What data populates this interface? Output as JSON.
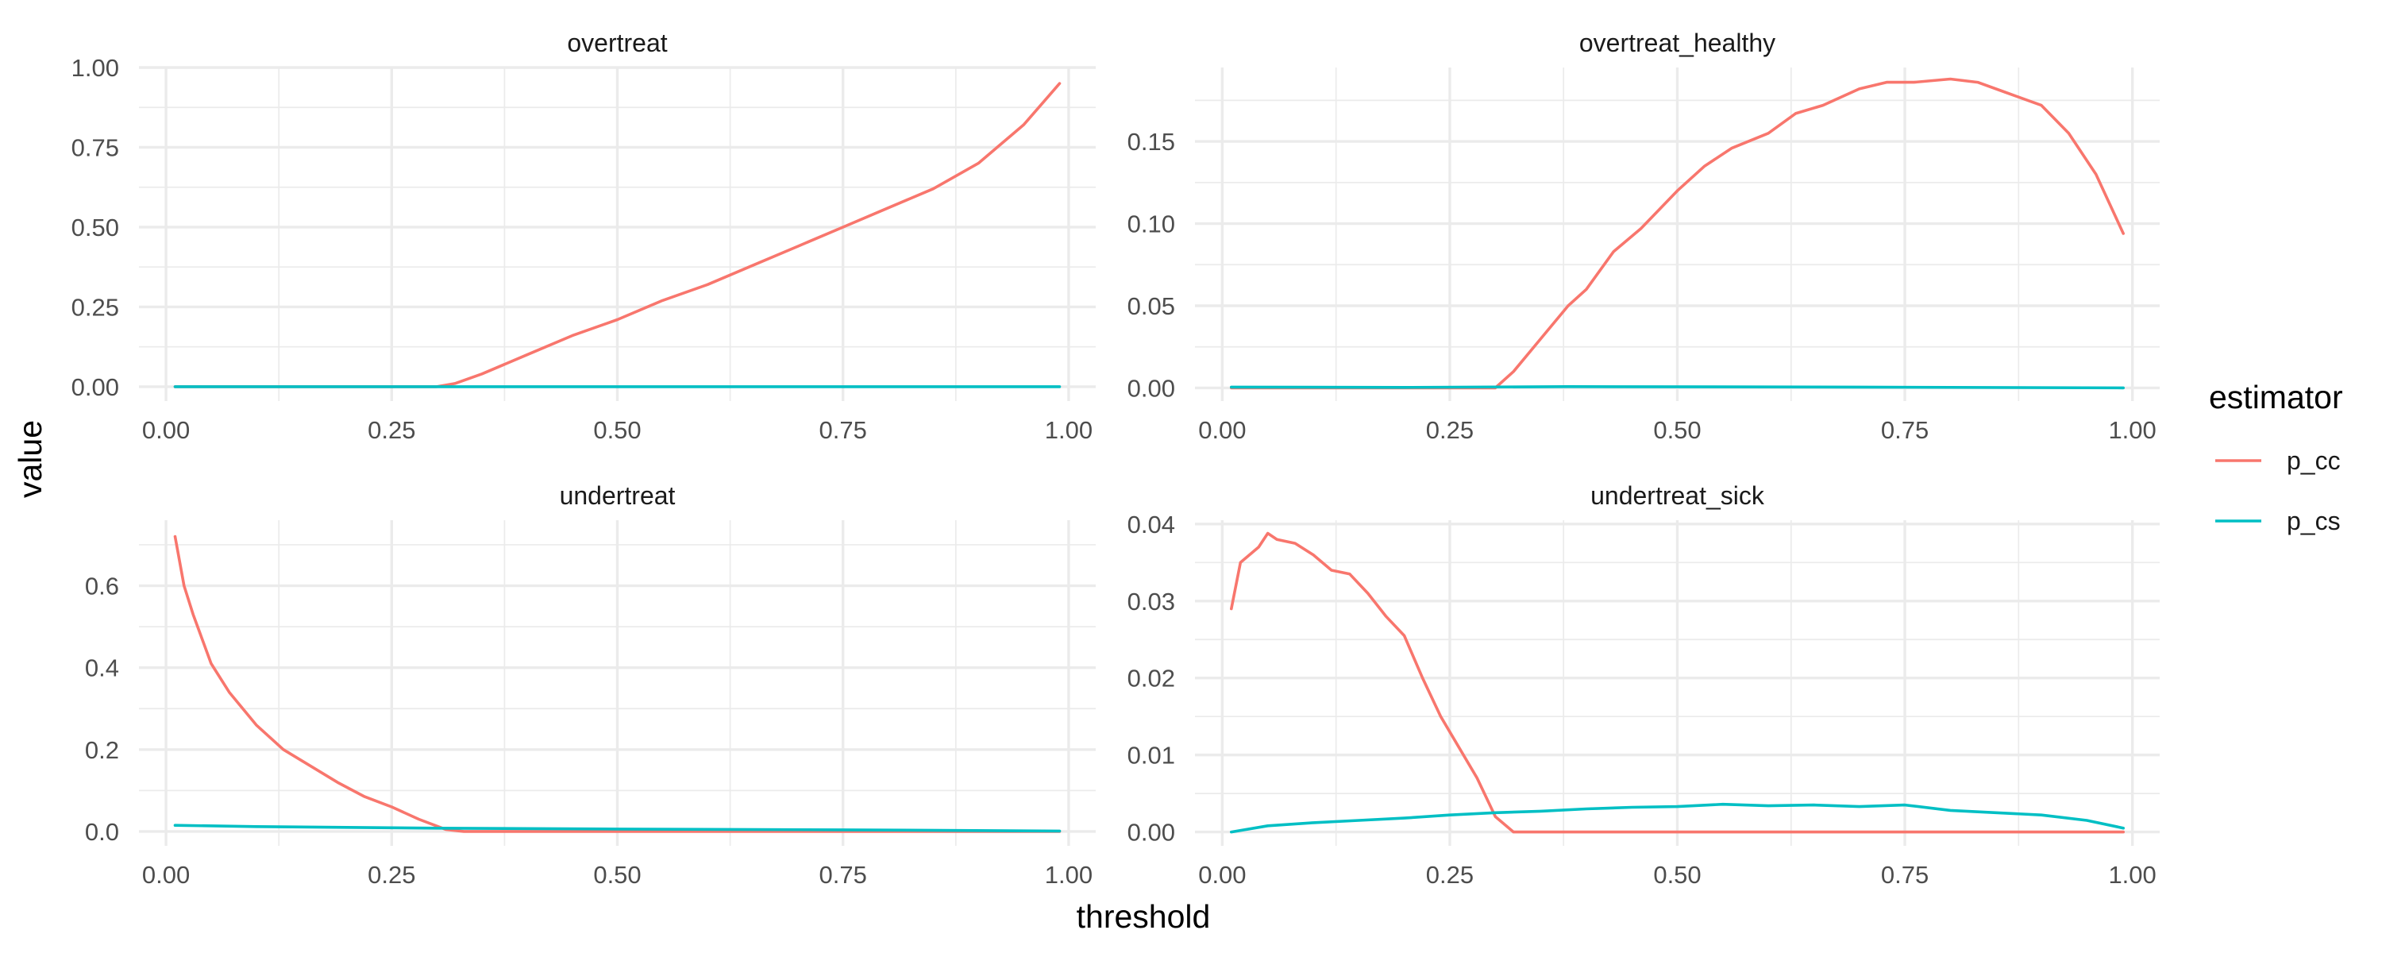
{
  "chart_data": {
    "type": "line",
    "layout": "facet-grid 2x2, free y scales",
    "xlabel": "threshold",
    "ylabel": "value",
    "legend": {
      "title": "estimator",
      "placement": "right",
      "entries": [
        {
          "name": "p_cc",
          "color": "#F8766D"
        },
        {
          "name": "p_cs",
          "color": "#00BFC4"
        }
      ]
    },
    "grid": true,
    "x_ticks": [
      0.0,
      0.25,
      0.5,
      0.75,
      1.0
    ],
    "x_tick_labels": [
      "0.00",
      "0.25",
      "0.50",
      "0.75",
      "1.00"
    ],
    "panels": [
      {
        "title": "overtreat",
        "xlim": [
          -0.03,
          1.03
        ],
        "ylim": [
          -0.045,
          1.0
        ],
        "y_ticks": [
          0,
          0.25,
          0.5,
          0.75,
          1.0
        ],
        "y_tick_labels": [
          "0.00",
          "0.25",
          "0.50",
          "0.75",
          "1.00"
        ],
        "series": [
          {
            "name": "p_cc",
            "x": [
              0.01,
              0.25,
              0.3,
              0.32,
              0.35,
              0.4,
              0.45,
              0.5,
              0.55,
              0.6,
              0.65,
              0.7,
              0.75,
              0.8,
              0.85,
              0.9,
              0.95,
              0.99
            ],
            "y": [
              0.0,
              0.0,
              0.0,
              0.01,
              0.04,
              0.1,
              0.16,
              0.21,
              0.27,
              0.32,
              0.38,
              0.44,
              0.5,
              0.56,
              0.62,
              0.7,
              0.82,
              0.95
            ]
          },
          {
            "name": "p_cs",
            "x": [
              0.01,
              0.99
            ],
            "y": [
              0.0,
              0.0
            ]
          }
        ]
      },
      {
        "title": "overtreat_healthy",
        "xlim": [
          -0.03,
          1.03
        ],
        "ylim": [
          -0.008,
          0.195
        ],
        "y_ticks": [
          0,
          0.05,
          0.1,
          0.15
        ],
        "y_tick_labels": [
          "0.00",
          "0.05",
          "0.10",
          "0.15"
        ],
        "series": [
          {
            "name": "p_cc",
            "x": [
              0.01,
              0.3,
              0.32,
              0.35,
              0.38,
              0.4,
              0.43,
              0.46,
              0.5,
              0.53,
              0.56,
              0.6,
              0.63,
              0.66,
              0.7,
              0.73,
              0.76,
              0.8,
              0.83,
              0.86,
              0.9,
              0.93,
              0.96,
              0.99
            ],
            "y": [
              0.0,
              0.0,
              0.01,
              0.03,
              0.05,
              0.06,
              0.083,
              0.097,
              0.12,
              0.135,
              0.146,
              0.155,
              0.167,
              0.172,
              0.182,
              0.186,
              0.186,
              0.188,
              0.186,
              0.18,
              0.172,
              0.155,
              0.13,
              0.094
            ]
          },
          {
            "name": "p_cs",
            "x": [
              0.01,
              0.2,
              0.38,
              0.7,
              0.99
            ],
            "y": [
              0.0005,
              0.0003,
              0.0008,
              0.0005,
              0.0
            ]
          }
        ]
      },
      {
        "title": "undertreat",
        "xlim": [
          -0.03,
          1.03
        ],
        "ylim": [
          -0.035,
          0.76
        ],
        "y_ticks": [
          0,
          0.2,
          0.4,
          0.6
        ],
        "y_tick_labels": [
          "0.0",
          "0.2",
          "0.4",
          "0.6"
        ],
        "series": [
          {
            "name": "p_cc",
            "x": [
              0.01,
              0.02,
              0.03,
              0.05,
              0.07,
              0.1,
              0.13,
              0.16,
              0.19,
              0.22,
              0.25,
              0.28,
              0.31,
              0.33,
              0.99
            ],
            "y": [
              0.72,
              0.6,
              0.53,
              0.41,
              0.34,
              0.26,
              0.2,
              0.16,
              0.12,
              0.085,
              0.06,
              0.03,
              0.005,
              0.0,
              0.0
            ]
          },
          {
            "name": "p_cs",
            "x": [
              0.01,
              0.1,
              0.2,
              0.3,
              0.5,
              0.75,
              0.99
            ],
            "y": [
              0.015,
              0.012,
              0.01,
              0.008,
              0.006,
              0.004,
              0.001
            ]
          }
        ]
      },
      {
        "title": "undertreat_sick",
        "xlim": [
          -0.03,
          1.03
        ],
        "ylim": [
          -0.0018,
          0.0405
        ],
        "y_ticks": [
          0,
          0.01,
          0.02,
          0.03,
          0.04
        ],
        "y_tick_labels": [
          "0.00",
          "0.01",
          "0.02",
          "0.03",
          "0.04"
        ],
        "series": [
          {
            "name": "p_cc",
            "x": [
              0.01,
              0.02,
              0.04,
              0.05,
              0.06,
              0.08,
              0.1,
              0.12,
              0.14,
              0.16,
              0.18,
              0.2,
              0.22,
              0.24,
              0.26,
              0.28,
              0.3,
              0.32,
              0.34,
              0.99
            ],
            "y": [
              0.029,
              0.035,
              0.037,
              0.0388,
              0.038,
              0.0375,
              0.036,
              0.034,
              0.0335,
              0.031,
              0.028,
              0.0255,
              0.02,
              0.015,
              0.011,
              0.007,
              0.002,
              0.0,
              0.0,
              0.0
            ]
          },
          {
            "name": "p_cs",
            "x": [
              0.01,
              0.05,
              0.1,
              0.15,
              0.2,
              0.25,
              0.3,
              0.35,
              0.4,
              0.45,
              0.5,
              0.55,
              0.6,
              0.65,
              0.7,
              0.75,
              0.8,
              0.85,
              0.9,
              0.95,
              0.99
            ],
            "y": [
              0.0,
              0.0008,
              0.0012,
              0.0015,
              0.0018,
              0.0022,
              0.0025,
              0.0027,
              0.003,
              0.0032,
              0.0033,
              0.0036,
              0.0034,
              0.0035,
              0.0033,
              0.0035,
              0.0028,
              0.0025,
              0.0022,
              0.0015,
              0.0005
            ]
          }
        ]
      }
    ]
  }
}
